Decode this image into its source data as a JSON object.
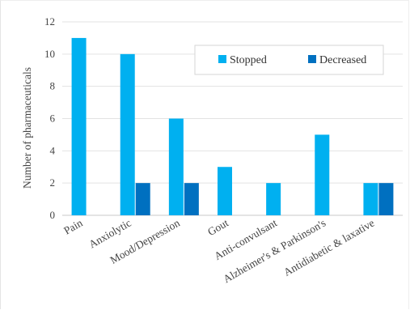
{
  "chart_data": {
    "type": "bar",
    "title": "",
    "xlabel": "",
    "ylabel": "Number of pharmaceuticals",
    "ylim": [
      0,
      12
    ],
    "yticks": [
      0,
      2,
      4,
      6,
      8,
      10,
      12
    ],
    "grid": true,
    "legend_position": "top-right",
    "categories": [
      "Pain",
      "Anxiolytic",
      "Mood/Depression",
      "Gout",
      "Anti-convulsant",
      "Alzheimer's & Parkinson's",
      "Antidiabetic & laxative"
    ],
    "series": [
      {
        "name": "Stopped",
        "color": "#00b0f0",
        "values": [
          11,
          10,
          6,
          3,
          2,
          5,
          2
        ]
      },
      {
        "name": "Decreased",
        "color": "#0070c0",
        "values": [
          0,
          2,
          2,
          0,
          0,
          0,
          2
        ]
      }
    ]
  }
}
